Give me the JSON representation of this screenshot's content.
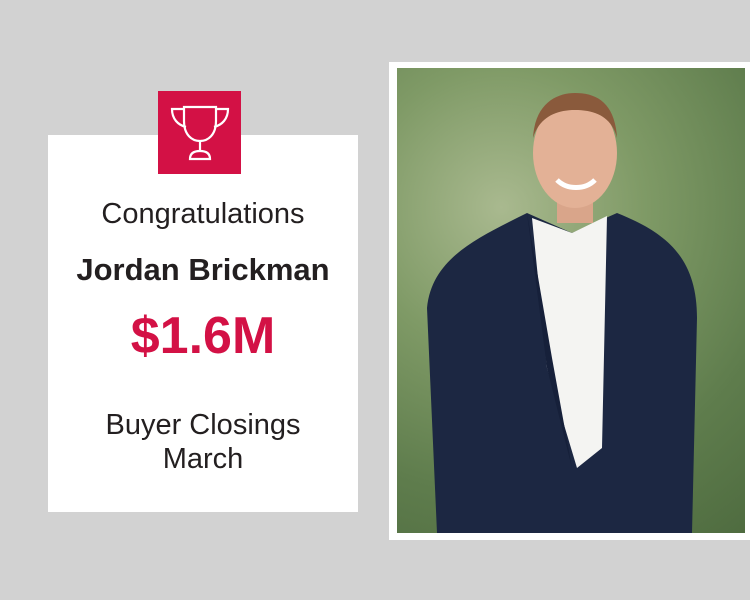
{
  "greeting": "Congratulations",
  "name": "Jordan Brickman",
  "amount": "$1.6M",
  "category": "Buyer Closings",
  "month": "March",
  "icon": "trophy-icon",
  "colors": {
    "accent": "#d31145",
    "background": "#d2d2d2",
    "text": "#231f20"
  }
}
